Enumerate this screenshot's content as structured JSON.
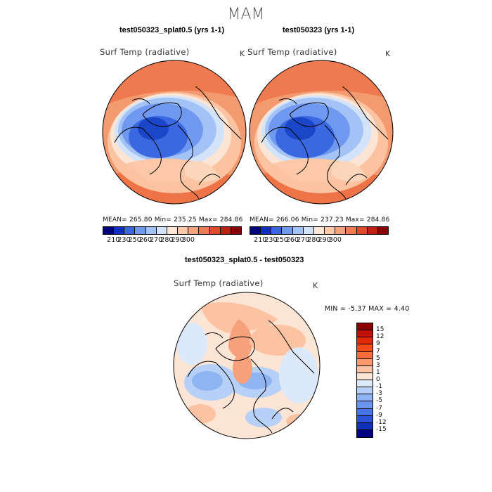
{
  "title": "MAM",
  "panels": [
    {
      "id": "left",
      "title": "test050323_splat0.5 (yrs 1-1)",
      "variable": "Surf Temp (radiative)",
      "unit": "K",
      "stats": "MEAN= 265.80   Min= 235.25   Max= 284.86"
    },
    {
      "id": "right",
      "title": "test050323 (yrs 1-1)",
      "variable": "Surf Temp (radiative)",
      "unit": "K",
      "stats": "MEAN= 266.06   Min= 237.23   Max= 284.86"
    }
  ],
  "abs_colorbar": {
    "colors": [
      "#000080",
      "#1030c0",
      "#3a68e0",
      "#6f99f0",
      "#a3c2f5",
      "#d3e3fa",
      "#fde7d6",
      "#fcc8a8",
      "#f8a27c",
      "#f07a52",
      "#e04a2a",
      "#c0200e",
      "#8b0000"
    ],
    "ticks": [
      "210",
      "230",
      "250",
      "260",
      "270",
      "280",
      "290",
      "300"
    ]
  },
  "diff": {
    "title": "test050323_splat0.5 - test050323",
    "variable": "Surf Temp (radiative)",
    "unit": "K",
    "min_label": "MIN =",
    "min_value": "-5.37",
    "max_label": "MAX =",
    "max_value": "4.40",
    "colors_top_to_bottom": [
      "#8b0000",
      "#c01008",
      "#e02a08",
      "#f24a18",
      "#f76c3a",
      "#fa9a6c",
      "#fcc3a2",
      "#fde5d6",
      "#dce9fb",
      "#b6d0f7",
      "#8fb4f2",
      "#6a95ee",
      "#4574e8",
      "#2a52d8",
      "#1030b8",
      "#000080"
    ],
    "ticks_top_to_bottom": [
      "15",
      "12",
      "9",
      "7",
      "5",
      "3",
      "1",
      "0",
      "-1",
      "-3",
      "-5",
      "-7",
      "-9",
      "-12",
      "-15"
    ]
  }
}
